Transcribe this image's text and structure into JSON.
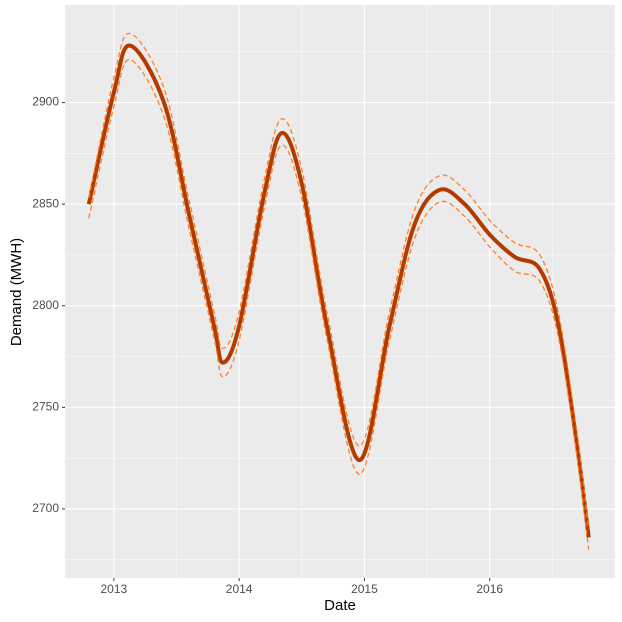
{
  "chart_data": {
    "type": "line",
    "x_label": "Date",
    "y_label": "Demand (MWH)",
    "x": [
      2012.8,
      2013.0,
      2013.13,
      2013.4,
      2013.6,
      2013.8,
      2013.87,
      2014.0,
      2014.2,
      2014.34,
      2014.5,
      2014.7,
      2014.96,
      2015.2,
      2015.4,
      2015.6,
      2015.8,
      2016.0,
      2016.2,
      2016.4,
      2016.55,
      2016.7,
      2016.79
    ],
    "series": [
      {
        "color": "#b33b00",
        "width": 4,
        "dashed": false,
        "values": [
          2850,
          2905,
          2928,
          2900,
          2845,
          2790,
          2772,
          2790,
          2855,
          2885,
          2860,
          2790,
          2724,
          2790,
          2840,
          2857,
          2850,
          2835,
          2824,
          2818,
          2790,
          2730,
          2686
        ]
      },
      {
        "color": "#ff7f2a",
        "width": 1.3,
        "dashed": true,
        "values": [
          2843,
          2898,
          2921,
          2893,
          2838,
          2784,
          2765,
          2783,
          2848,
          2879,
          2853,
          2784,
          2717,
          2783,
          2833,
          2851,
          2844,
          2829,
          2817,
          2812,
          2784,
          2724,
          2680
        ]
      },
      {
        "color": "#ff7f2a",
        "width": 1.3,
        "dashed": true,
        "values": [
          2853,
          2912,
          2934,
          2907,
          2852,
          2797,
          2779,
          2797,
          2862,
          2892,
          2867,
          2797,
          2731,
          2797,
          2847,
          2864,
          2857,
          2842,
          2831,
          2825,
          2796,
          2736,
          2690
        ]
      }
    ],
    "xlim": [
      2012.61,
      2017.0
    ],
    "xticks": [
      2013,
      2014,
      2015,
      2016
    ],
    "ylim": [
      2666,
      2948
    ],
    "yticks": [
      2700,
      2750,
      2800,
      2850,
      2900
    ],
    "grid": true,
    "background": "#ebebeb"
  }
}
